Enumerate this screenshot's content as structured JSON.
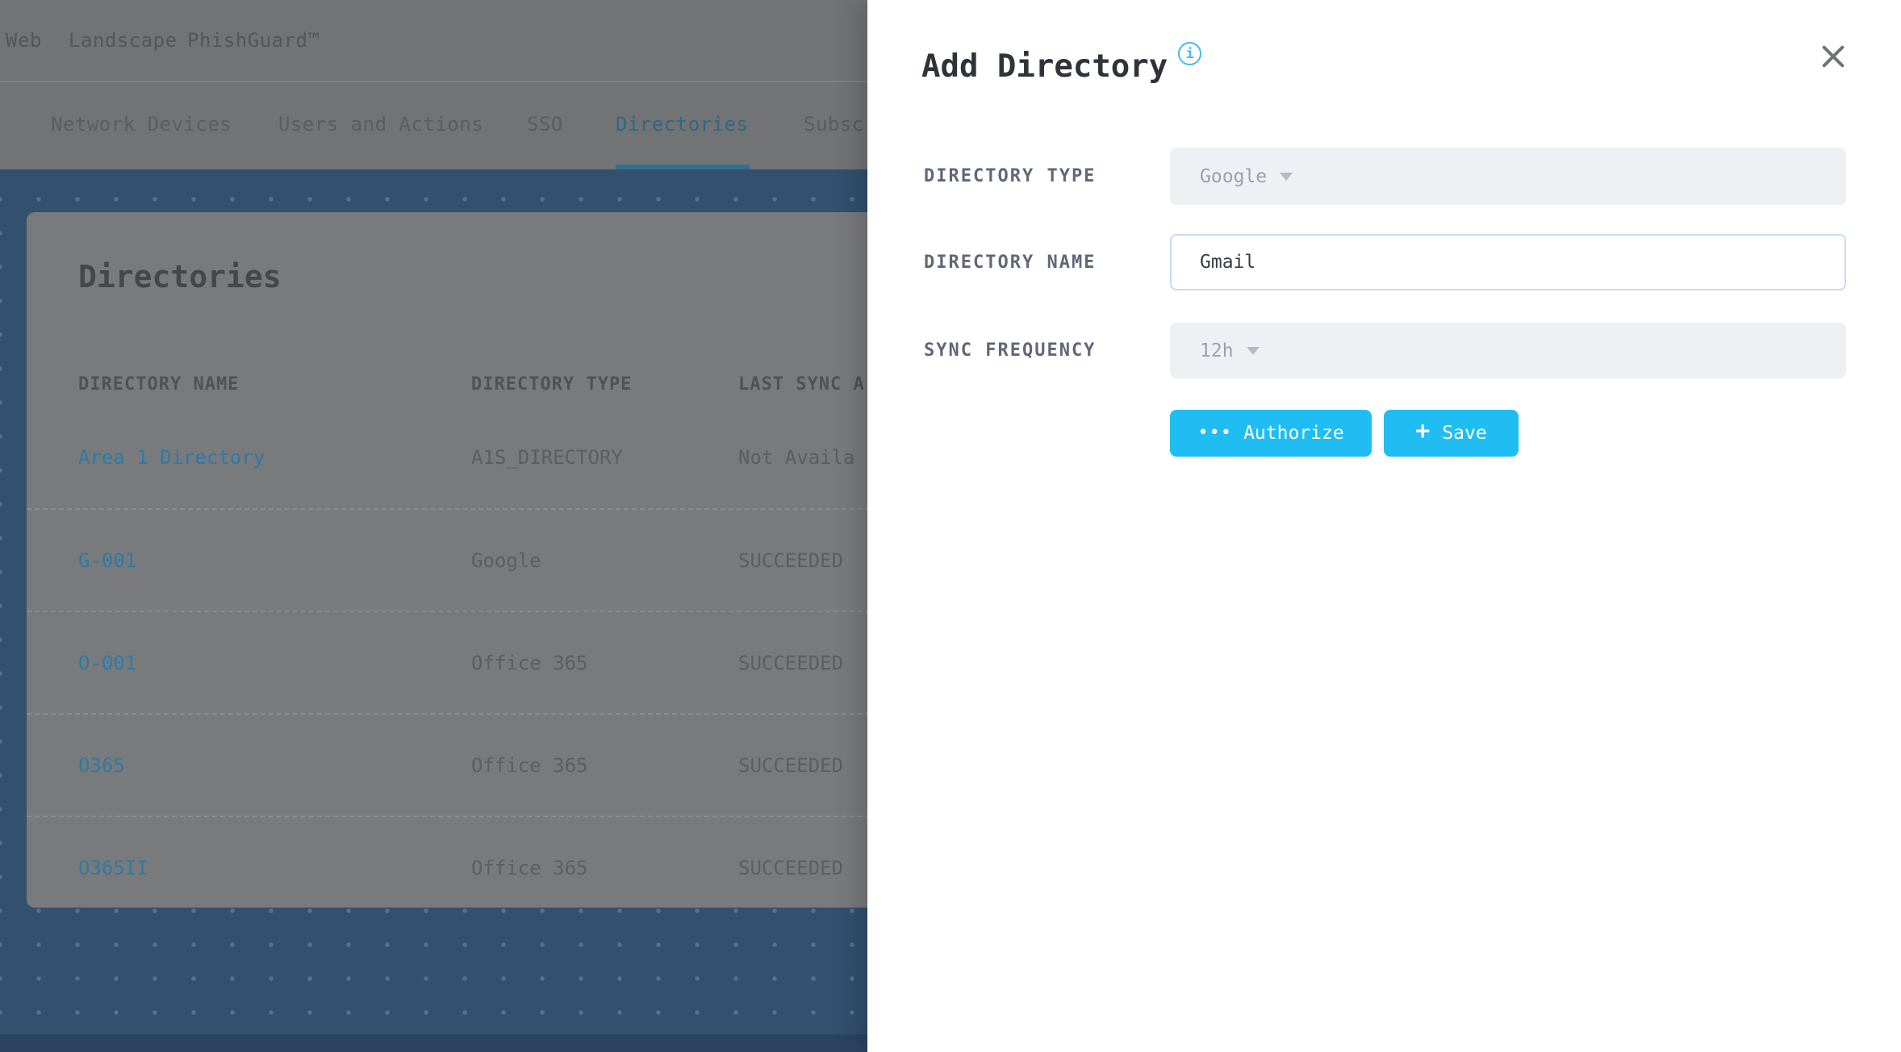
{
  "topnav": {
    "items": [
      {
        "label": "Web"
      },
      {
        "label": "Landscape"
      },
      {
        "label": "PhishGuard™"
      }
    ]
  },
  "tabs": {
    "items": [
      {
        "label": "Network Devices",
        "active": false
      },
      {
        "label": "Users and Actions",
        "active": false
      },
      {
        "label": "SSO",
        "active": false
      },
      {
        "label": "Directories",
        "active": true
      },
      {
        "label": "Subscri",
        "active": false
      }
    ]
  },
  "directories_page": {
    "title": "Directories",
    "table": {
      "columns": [
        "DIRECTORY NAME",
        "DIRECTORY TYPE",
        "LAST SYNC A"
      ],
      "rows": [
        {
          "name": "Area 1 Directory",
          "type": "A1S_DIRECTORY",
          "last_sync": "Not Availa"
        },
        {
          "name": "G-001",
          "type": "Google",
          "last_sync": "SUCCEEDED"
        },
        {
          "name": "O-001",
          "type": "Office 365",
          "last_sync": "SUCCEEDED"
        },
        {
          "name": "O365",
          "type": "Office 365",
          "last_sync": "SUCCEEDED"
        },
        {
          "name": "O365II",
          "type": "Office 365",
          "last_sync": "SUCCEEDED"
        }
      ]
    }
  },
  "drawer": {
    "title": "Add Directory",
    "info_icon_glyph": "i",
    "fields": [
      {
        "label": "DIRECTORY TYPE",
        "control": "select",
        "value": "Google"
      },
      {
        "label": "DIRECTORY NAME",
        "control": "input",
        "value": "Gmail"
      },
      {
        "label": "SYNC FREQUENCY",
        "control": "select",
        "value": "12h"
      }
    ],
    "buttons": [
      {
        "label": "Authorize",
        "icon": "ellipsis-icon",
        "icon_glyph": "•••"
      },
      {
        "label": "Save",
        "icon": "plus-icon",
        "icon_glyph": "+"
      }
    ]
  },
  "colors": {
    "accent": "#1fbdf2",
    "info_blue": "#45baf0",
    "page_blue": "#33506e",
    "link_dimmed": "#2e7aa6",
    "tab_active": "#2f6787"
  }
}
